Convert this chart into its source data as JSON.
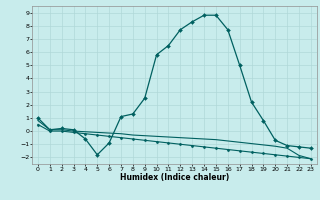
{
  "title": "",
  "xlabel": "Humidex (Indice chaleur)",
  "ylabel": "",
  "bg_color": "#c8ecec",
  "grid_color": "#b0d8d8",
  "line_color": "#006060",
  "xlim": [
    -0.5,
    23.5
  ],
  "ylim": [
    -2.5,
    9.5
  ],
  "xticks": [
    0,
    1,
    2,
    3,
    4,
    5,
    6,
    7,
    8,
    9,
    10,
    11,
    12,
    13,
    14,
    15,
    16,
    17,
    18,
    19,
    20,
    21,
    22,
    23
  ],
  "yticks": [
    -2,
    -1,
    0,
    1,
    2,
    3,
    4,
    5,
    6,
    7,
    8,
    9
  ],
  "series": [
    {
      "x": [
        0,
        1,
        2,
        3,
        4,
        5,
        6,
        7,
        8,
        9,
        10,
        11,
        12,
        13,
        14,
        15,
        16,
        17,
        18,
        19,
        20,
        21,
        22,
        23
      ],
      "y": [
        1.0,
        0.1,
        0.2,
        0.1,
        -0.6,
        -1.8,
        -0.9,
        1.1,
        1.3,
        2.5,
        5.8,
        6.5,
        7.7,
        8.3,
        8.8,
        8.8,
        7.7,
        5.0,
        2.2,
        0.8,
        -0.7,
        -1.1,
        -1.2,
        -1.3
      ],
      "marker": "D",
      "markersize": 2,
      "linewidth": 0.9
    },
    {
      "x": [
        0,
        1,
        2,
        3,
        4,
        5,
        6,
        7,
        8,
        9,
        10,
        11,
        12,
        13,
        14,
        15,
        16,
        17,
        18,
        19,
        20,
        21,
        22,
        23
      ],
      "y": [
        0.8,
        0.1,
        0.1,
        0.0,
        -0.05,
        -0.1,
        -0.15,
        -0.2,
        -0.3,
        -0.35,
        -0.4,
        -0.45,
        -0.5,
        -0.55,
        -0.6,
        -0.65,
        -0.75,
        -0.85,
        -0.95,
        -1.05,
        -1.15,
        -1.3,
        -1.85,
        -2.1
      ],
      "marker": null,
      "markersize": 0,
      "linewidth": 0.8
    },
    {
      "x": [
        0,
        1,
        2,
        3,
        4,
        5,
        6,
        7,
        8,
        9,
        10,
        11,
        12,
        13,
        14,
        15,
        16,
        17,
        18,
        19,
        20,
        21,
        22,
        23
      ],
      "y": [
        0.5,
        0.0,
        0.0,
        -0.1,
        -0.2,
        -0.3,
        -0.4,
        -0.5,
        -0.6,
        -0.7,
        -0.8,
        -0.9,
        -1.0,
        -1.1,
        -1.2,
        -1.3,
        -1.4,
        -1.5,
        -1.6,
        -1.7,
        -1.8,
        -1.9,
        -2.0,
        -2.1
      ],
      "marker": "D",
      "markersize": 1.5,
      "linewidth": 0.8
    }
  ]
}
